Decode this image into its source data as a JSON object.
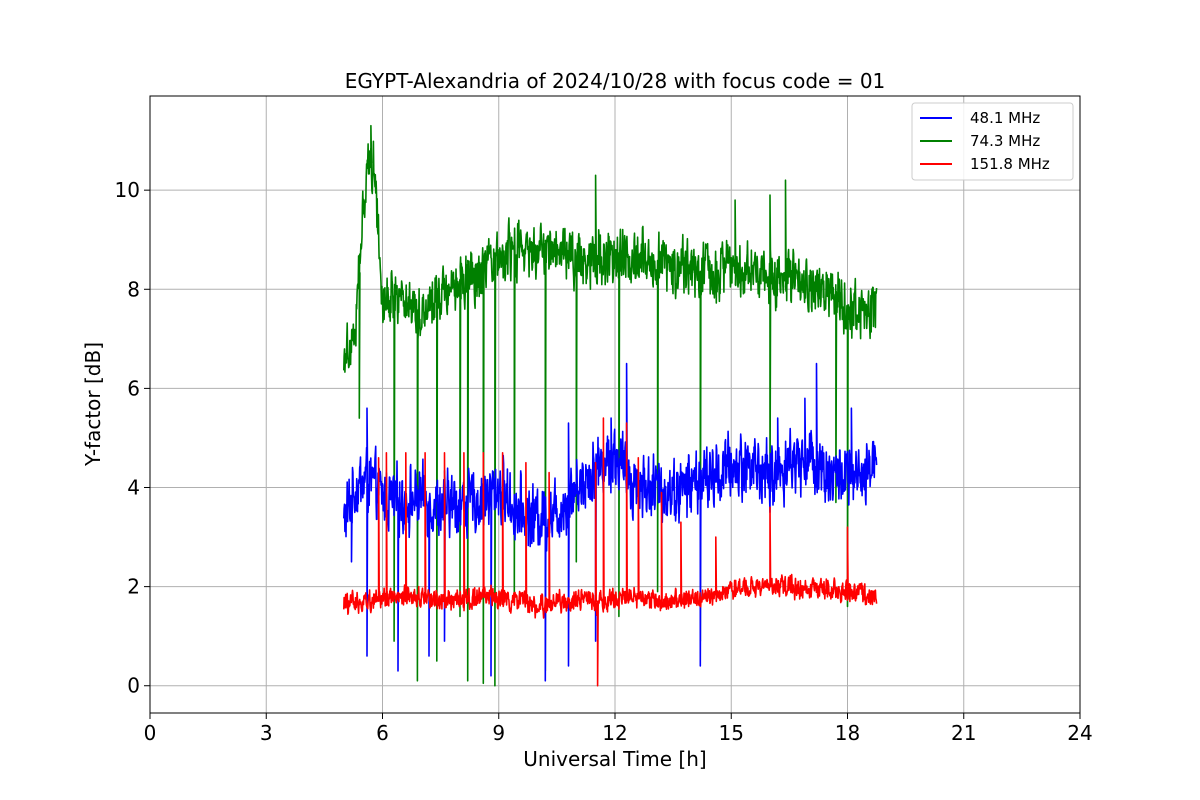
{
  "chart_data": {
    "type": "line",
    "title": "EGYPT-Alexandria of 2024/10/28 with focus code = 01",
    "xlabel": "Universal Time [h]",
    "ylabel": "Y-factor [dB]",
    "xlim": [
      0,
      24
    ],
    "ylim": [
      -0.55,
      11.9
    ],
    "xticks": [
      0,
      3,
      6,
      9,
      12,
      15,
      18,
      21,
      24
    ],
    "yticks": [
      0,
      2,
      4,
      6,
      8,
      10
    ],
    "grid": true,
    "legend_position": "top-right",
    "series": [
      {
        "name": "48.1 MHz",
        "color": "#0000ff",
        "trend_x": [
          5.0,
          5.3,
          5.6,
          6.0,
          6.5,
          7.0,
          7.5,
          8.0,
          8.5,
          9.0,
          9.5,
          10.0,
          10.5,
          11.0,
          11.5,
          12.0,
          12.5,
          13.0,
          13.5,
          14.0,
          14.5,
          15.0,
          15.5,
          16.0,
          16.5,
          17.0,
          17.5,
          18.0,
          18.5,
          18.75
        ],
        "trend_y": [
          3.3,
          4.0,
          4.2,
          3.8,
          3.7,
          3.8,
          3.6,
          3.7,
          3.7,
          4.0,
          3.5,
          3.4,
          3.5,
          4.0,
          4.4,
          4.6,
          4.1,
          4.0,
          3.9,
          4.1,
          4.2,
          4.4,
          4.5,
          4.2,
          4.5,
          4.6,
          4.3,
          4.2,
          4.1,
          4.9
        ],
        "amplitude": 0.75,
        "spikes_high": [
          [
            5.6,
            5.6
          ],
          [
            10.8,
            5.3
          ],
          [
            11.9,
            5.4
          ],
          [
            12.3,
            6.5
          ],
          [
            16.2,
            5.4
          ],
          [
            16.9,
            5.8
          ],
          [
            17.2,
            6.5
          ],
          [
            18.1,
            5.6
          ]
        ],
        "spikes_low": [
          [
            5.2,
            2.5
          ],
          [
            5.6,
            0.6
          ],
          [
            6.4,
            0.3
          ],
          [
            7.2,
            0.6
          ],
          [
            7.6,
            0.9
          ],
          [
            8.8,
            0.2
          ],
          [
            10.2,
            0.1
          ],
          [
            10.8,
            0.4
          ],
          [
            11.5,
            0.9
          ],
          [
            14.2,
            0.4
          ]
        ]
      },
      {
        "name": "74.3 MHz",
        "color": "#008000",
        "trend_x": [
          5.0,
          5.3,
          5.6,
          5.8,
          6.0,
          6.5,
          7.0,
          7.5,
          8.0,
          8.5,
          9.0,
          9.5,
          10.0,
          10.5,
          11.0,
          11.5,
          12.0,
          12.5,
          13.0,
          13.5,
          14.0,
          14.5,
          15.0,
          15.5,
          16.0,
          16.5,
          17.0,
          17.5,
          18.0,
          18.5,
          18.75
        ],
        "trend_y": [
          6.7,
          7.2,
          10.6,
          10.5,
          7.8,
          7.9,
          7.5,
          8.0,
          8.2,
          8.2,
          8.6,
          8.8,
          8.7,
          8.9,
          8.6,
          8.7,
          8.6,
          8.7,
          8.6,
          8.5,
          8.4,
          8.3,
          8.5,
          8.4,
          8.3,
          8.2,
          8.0,
          7.9,
          7.6,
          7.5,
          7.6
        ],
        "amplitude": 0.65,
        "spikes_high": [
          [
            5.7,
            11.3
          ],
          [
            11.5,
            10.3
          ],
          [
            16.4,
            10.2
          ],
          [
            16.0,
            9.9
          ],
          [
            15.1,
            9.8
          ]
        ],
        "spikes_low": [
          [
            5.4,
            5.4
          ],
          [
            6.3,
            0.9
          ],
          [
            6.9,
            0.1
          ],
          [
            7.4,
            0.5
          ],
          [
            8.0,
            1.4
          ],
          [
            8.2,
            0.1
          ],
          [
            8.6,
            0.05
          ],
          [
            8.9,
            0.0
          ],
          [
            9.4,
            1.7
          ],
          [
            10.2,
            0.3
          ],
          [
            11.0,
            2.5
          ],
          [
            12.1,
            1.4
          ],
          [
            13.1,
            1.9
          ],
          [
            14.2,
            0.9
          ],
          [
            16.0,
            3.8
          ],
          [
            17.7,
            3.7
          ],
          [
            18.0,
            1.6
          ]
        ]
      },
      {
        "name": "151.8 MHz",
        "color": "#ff0000",
        "trend_x": [
          5.0,
          5.5,
          6.0,
          6.5,
          7.0,
          7.5,
          8.0,
          8.5,
          9.0,
          9.5,
          10.0,
          10.5,
          11.0,
          11.5,
          12.0,
          12.5,
          13.0,
          13.5,
          14.0,
          14.5,
          15.0,
          15.5,
          16.0,
          16.5,
          17.0,
          17.5,
          18.0,
          18.5,
          18.75
        ],
        "trend_y": [
          1.65,
          1.7,
          1.8,
          1.75,
          1.8,
          1.7,
          1.75,
          1.8,
          1.75,
          1.7,
          1.6,
          1.65,
          1.75,
          1.7,
          1.75,
          1.8,
          1.75,
          1.7,
          1.75,
          1.8,
          1.95,
          2.0,
          2.0,
          2.0,
          1.95,
          1.95,
          1.9,
          1.85,
          1.8
        ],
        "amplitude": 0.25,
        "spikes_high": [
          [
            5.9,
            4.6
          ],
          [
            6.1,
            4.7
          ],
          [
            6.6,
            4.7
          ],
          [
            7.1,
            4.7
          ],
          [
            7.6,
            4.7
          ],
          [
            8.1,
            4.7
          ],
          [
            8.6,
            4.7
          ],
          [
            9.1,
            4.7
          ],
          [
            9.7,
            4.5
          ],
          [
            10.3,
            4.3
          ],
          [
            11.5,
            4.5
          ],
          [
            11.7,
            5.4
          ],
          [
            12.3,
            5.3
          ],
          [
            12.6,
            4.6
          ],
          [
            13.2,
            3.9
          ],
          [
            13.7,
            3.3
          ],
          [
            14.6,
            3.0
          ],
          [
            16.0,
            3.6
          ],
          [
            18.0,
            3.2
          ]
        ],
        "spikes_low": [
          [
            11.55,
            0.0
          ]
        ]
      }
    ]
  }
}
